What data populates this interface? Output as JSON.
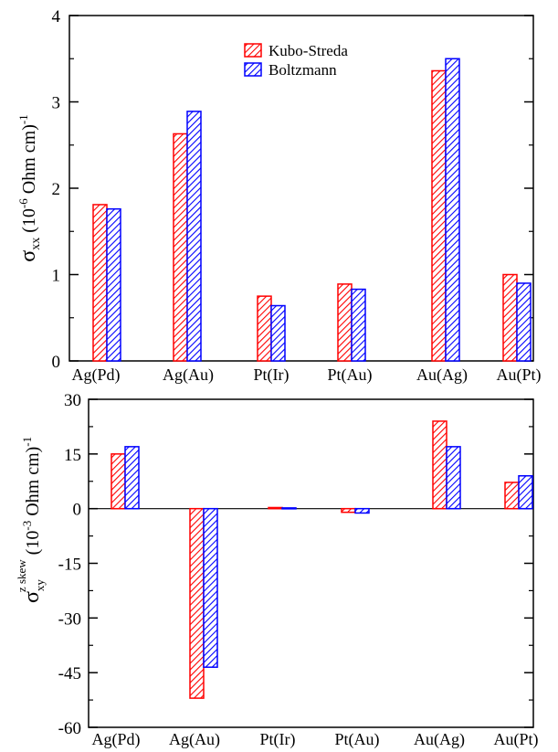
{
  "colors": {
    "kubo": "#ff0000",
    "boltz": "#0000ff",
    "axis": "#000000"
  },
  "chart_data": [
    {
      "type": "bar",
      "categories": [
        "Ag(Pd)",
        "Ag(Au)",
        "Pt(Ir)",
        "Pt(Au)",
        "Au(Ag)",
        "Au(Pt)"
      ],
      "series": [
        {
          "name": "Kubo-Streda",
          "values": [
            1.81,
            2.63,
            0.75,
            0.89,
            3.36,
            1.0
          ]
        },
        {
          "name": "Boltzmann",
          "values": [
            1.76,
            2.89,
            0.64,
            0.83,
            3.5,
            0.9
          ]
        }
      ],
      "ylim": [
        0,
        4
      ],
      "yticks": [
        "0",
        "1",
        "2",
        "3",
        "4"
      ],
      "ylabel": {
        "symbol": "σ",
        "sub": "xx",
        "unit_open": "(10",
        "unit_exp": "-6",
        "unit_mid": " Ohm cm)",
        "unit_pow": "-1"
      },
      "legend_position": "top-center",
      "grid": false
    },
    {
      "type": "bar",
      "categories": [
        "Ag(Pd)",
        "Ag(Au)",
        "Pt(Ir)",
        "Pt(Au)",
        "Au(Ag)",
        "Au(Pt)"
      ],
      "series": [
        {
          "name": "Kubo-Streda",
          "values": [
            15.0,
            -52.0,
            0.3,
            -1.0,
            24.0,
            7.2
          ]
        },
        {
          "name": "Boltzmann",
          "values": [
            17.0,
            -43.5,
            0.2,
            -1.2,
            17.0,
            9.0
          ]
        }
      ],
      "ylim": [
        -60,
        30
      ],
      "yticks": [
        "-60",
        "-45",
        "-30",
        "-15",
        "0",
        "15",
        "30"
      ],
      "ylabel": {
        "symbol": "σ",
        "sub": "xy",
        "sup": "z skew",
        "unit_open": "(10",
        "unit_exp": "-3",
        "unit_mid": " Ohm cm)",
        "unit_pow": "-1"
      },
      "zero_line": true,
      "grid": false
    }
  ]
}
